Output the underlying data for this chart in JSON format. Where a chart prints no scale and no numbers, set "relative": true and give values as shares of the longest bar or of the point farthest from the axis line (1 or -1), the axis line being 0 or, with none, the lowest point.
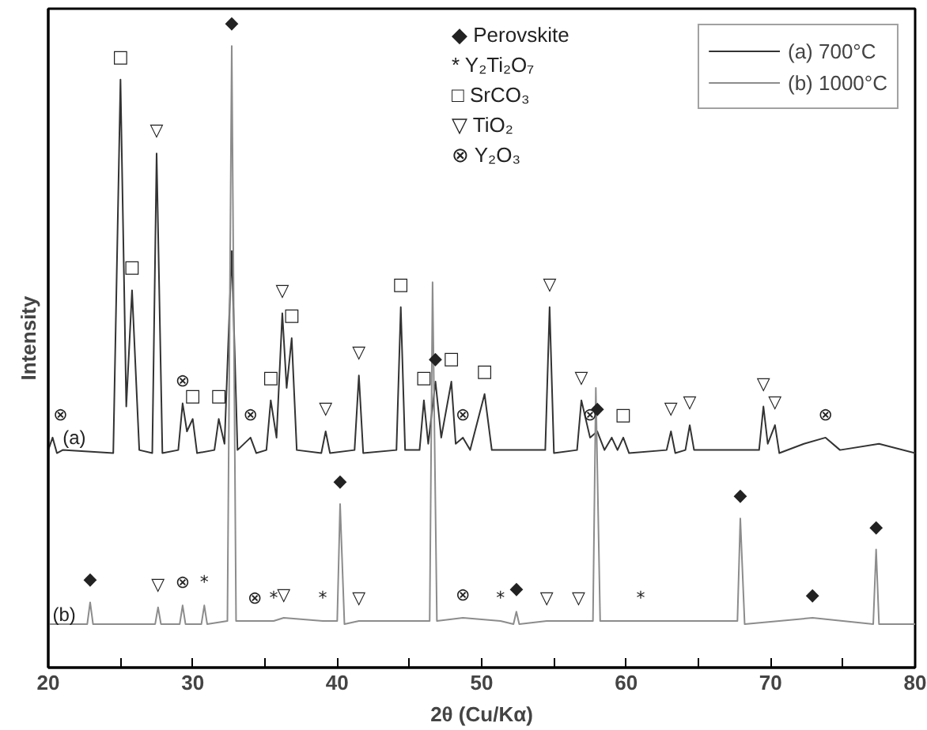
{
  "chart_data": {
    "type": "line",
    "relative": true,
    "xlabel": "2θ (Cu/Kα)",
    "ylabel": "Intensity",
    "xlim": [
      20,
      80
    ],
    "xticks": [
      20,
      {
        "value": 25,
        "label": null
      },
      30,
      {
        "value": 35,
        "label": null
      },
      40,
      {
        "value": 45,
        "label": null
      },
      50,
      {
        "value": 55,
        "label": null
      },
      60,
      {
        "value": 65,
        "label": null
      },
      70,
      {
        "value": 75,
        "label": null
      },
      80
    ],
    "tick_labels": "x",
    "grid": false,
    "legend": "top right",
    "line_style": "solid",
    "marker": "none",
    "series": [
      {
        "name": "(a) 700°C",
        "color": "#333333",
        "x": [
          20.0,
          20.3,
          20.6,
          21.0,
          24.5,
          25.0,
          25.4,
          25.8,
          26.3,
          27.2,
          27.5,
          27.9,
          29.0,
          29.3,
          29.6,
          30.0,
          30.3,
          31.5,
          31.8,
          32.2,
          32.7,
          33.1,
          34.0,
          34.4,
          35.1,
          35.4,
          35.8,
          36.2,
          36.5,
          36.85,
          37.2,
          38.9,
          39.2,
          39.5,
          41.2,
          41.5,
          41.8,
          44.1,
          44.4,
          44.7,
          45.7,
          46.0,
          46.3,
          46.8,
          47.2,
          47.9,
          48.2,
          48.7,
          49.2,
          50.2,
          50.7,
          52.0,
          54.4,
          54.7,
          55.0,
          56.6,
          56.9,
          57.5,
          58.0,
          58.5,
          59.0,
          59.4,
          59.8,
          60.2,
          62.8,
          63.1,
          63.4,
          64.1,
          64.4,
          64.7,
          69.2,
          69.5,
          69.8,
          70.3,
          70.6,
          72.3,
          73.8,
          74.8,
          77.5,
          80.0
        ],
        "values": [
          0.35,
          0.37,
          0.345,
          0.35,
          0.345,
          0.946,
          0.42,
          0.607,
          0.35,
          0.345,
          0.827,
          0.345,
          0.35,
          0.425,
          0.38,
          0.4,
          0.345,
          0.35,
          0.4,
          0.36,
          0.67,
          0.35,
          0.37,
          0.345,
          0.35,
          0.43,
          0.37,
          0.57,
          0.45,
          0.53,
          0.35,
          0.345,
          0.38,
          0.345,
          0.35,
          0.47,
          0.345,
          0.35,
          0.58,
          0.35,
          0.35,
          0.43,
          0.36,
          0.46,
          0.37,
          0.46,
          0.36,
          0.37,
          0.35,
          0.44,
          0.35,
          0.35,
          0.35,
          0.58,
          0.345,
          0.35,
          0.43,
          0.37,
          0.38,
          0.35,
          0.37,
          0.35,
          0.37,
          0.345,
          0.35,
          0.38,
          0.345,
          0.35,
          0.39,
          0.35,
          0.35,
          0.42,
          0.36,
          0.39,
          0.345,
          0.36,
          0.37,
          0.35,
          0.36,
          0.345
        ]
      },
      {
        "name": "(b) 1000°C",
        "color": "#8c8c8c",
        "x": [
          20.0,
          22.7,
          22.9,
          23.1,
          27.4,
          27.6,
          27.8,
          29.1,
          29.3,
          29.5,
          30.6,
          30.8,
          31.0,
          32.4,
          32.7,
          33.0,
          34.3,
          35.6,
          36.3,
          39.0,
          40.0,
          40.2,
          40.5,
          41.5,
          46.4,
          46.6,
          46.9,
          48.7,
          51.3,
          52.2,
          52.4,
          52.6,
          54.5,
          56.7,
          57.7,
          57.9,
          58.2,
          61.0,
          67.7,
          67.9,
          68.2,
          72.9,
          77.1,
          77.3,
          77.5,
          80.0
        ],
        "values": [
          0.07,
          0.07,
          0.105,
          0.07,
          0.07,
          0.097,
          0.07,
          0.07,
          0.1,
          0.07,
          0.07,
          0.1,
          0.07,
          0.075,
          1.0,
          0.075,
          0.075,
          0.075,
          0.08,
          0.075,
          0.075,
          0.263,
          0.07,
          0.075,
          0.075,
          0.62,
          0.075,
          0.08,
          0.075,
          0.07,
          0.09,
          0.07,
          0.075,
          0.075,
          0.075,
          0.45,
          0.075,
          0.075,
          0.075,
          0.24,
          0.07,
          0.08,
          0.07,
          0.19,
          0.07,
          0.07
        ]
      }
    ],
    "annotations": [
      "◆ Perovskite",
      "* Y₂Ti₂O₇",
      "□ SrCO₃",
      "▽ TiO₂",
      "⊗ Y₂O₃",
      "(a)",
      "(b)",
      {
        "text": "⊗",
        "x": 20.3,
        "y": 0.37
      },
      {
        "text": "□",
        "x": 25.0,
        "y": 0.946
      },
      {
        "text": "□",
        "x": 25.8,
        "y": 0.607
      },
      {
        "text": "▽",
        "x": 27.5,
        "y": 0.827
      },
      {
        "text": "⊗",
        "x": 29.3,
        "y": 0.425
      },
      {
        "text": "□",
        "x": 30.0,
        "y": 0.4
      },
      {
        "text": "□",
        "x": 31.8,
        "y": 0.4
      },
      {
        "text": "◆",
        "x": 32.7,
        "y": 1.0
      },
      {
        "text": "⊗",
        "x": 34.0,
        "y": 0.37
      },
      {
        "text": "□",
        "x": 35.4,
        "y": 0.43
      },
      {
        "text": "▽",
        "x": 36.2,
        "y": 0.57
      },
      {
        "text": "□",
        "x": 36.85,
        "y": 0.53
      },
      {
        "text": "▽",
        "x": 39.2,
        "y": 0.38
      },
      {
        "text": "▽",
        "x": 41.5,
        "y": 0.47
      },
      {
        "text": "□",
        "x": 44.4,
        "y": 0.58
      },
      {
        "text": "□",
        "x": 46.0,
        "y": 0.43
      },
      {
        "text": "◆",
        "x": 46.8,
        "y": 0.46
      },
      {
        "text": "□",
        "x": 47.9,
        "y": 0.46
      },
      {
        "text": "⊗",
        "x": 48.7,
        "y": 0.37
      },
      {
        "text": "□",
        "x": 50.2,
        "y": 0.44
      },
      {
        "text": "▽",
        "x": 54.7,
        "y": 0.58
      },
      {
        "text": "▽",
        "x": 56.9,
        "y": 0.43
      },
      {
        "text": "⊗",
        "x": 57.5,
        "y": 0.37
      },
      {
        "text": "◆",
        "x": 58.0,
        "y": 0.38
      },
      {
        "text": "□",
        "x": 59.8,
        "y": 0.37
      },
      {
        "text": "▽",
        "x": 63.1,
        "y": 0.38
      },
      {
        "text": "▽",
        "x": 64.4,
        "y": 0.39
      },
      {
        "text": "▽",
        "x": 69.5,
        "y": 0.42
      },
      {
        "text": "▽",
        "x": 70.3,
        "y": 0.39
      },
      {
        "text": "⊗",
        "x": 73.8,
        "y": 0.37
      },
      {
        "text": "◆",
        "x": 22.9,
        "y": 0.105
      },
      {
        "text": "▽",
        "x": 27.6,
        "y": 0.097
      },
      {
        "text": "⊗",
        "x": 29.3,
        "y": 0.1
      },
      {
        "text": "*",
        "x": 30.8,
        "y": 0.1
      },
      {
        "text": "⊗",
        "x": 34.3,
        "y": 0.075
      },
      {
        "text": "*",
        "x": 35.6,
        "y": 0.075
      },
      {
        "text": "▽",
        "x": 36.3,
        "y": 0.08
      },
      {
        "text": "*",
        "x": 39.0,
        "y": 0.075
      },
      {
        "text": "◆",
        "x": 40.2,
        "y": 0.263
      },
      {
        "text": "▽",
        "x": 41.5,
        "y": 0.075
      },
      {
        "text": "⊗",
        "x": 48.7,
        "y": 0.08
      },
      {
        "text": "*",
        "x": 51.3,
        "y": 0.075
      },
      {
        "text": "◆",
        "x": 52.4,
        "y": 0.09
      },
      {
        "text": "▽",
        "x": 54.5,
        "y": 0.075
      },
      {
        "text": "▽",
        "x": 56.7,
        "y": 0.075
      },
      {
        "text": "*",
        "x": 61.0,
        "y": 0.075
      },
      {
        "text": "◆",
        "x": 67.9,
        "y": 0.24
      },
      {
        "text": "◆",
        "x": 72.9,
        "y": 0.08
      },
      {
        "text": "◆",
        "x": 77.3,
        "y": 0.19
      }
    ]
  }
}
